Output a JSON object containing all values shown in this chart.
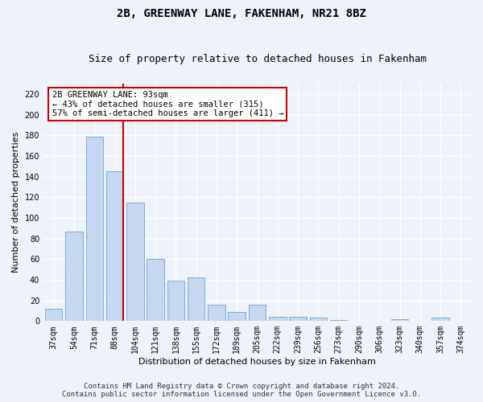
{
  "title": "2B, GREENWAY LANE, FAKENHAM, NR21 8BZ",
  "subtitle": "Size of property relative to detached houses in Fakenham",
  "xlabel": "Distribution of detached houses by size in Fakenham",
  "ylabel": "Number of detached properties",
  "footer_line1": "Contains HM Land Registry data © Crown copyright and database right 2024.",
  "footer_line2": "Contains public sector information licensed under the Open Government Licence v3.0.",
  "categories": [
    "37sqm",
    "54sqm",
    "71sqm",
    "88sqm",
    "104sqm",
    "121sqm",
    "138sqm",
    "155sqm",
    "172sqm",
    "189sqm",
    "205sqm",
    "222sqm",
    "239sqm",
    "256sqm",
    "273sqm",
    "290sqm",
    "306sqm",
    "323sqm",
    "340sqm",
    "357sqm",
    "374sqm"
  ],
  "values": [
    12,
    87,
    179,
    145,
    115,
    60,
    39,
    42,
    16,
    9,
    16,
    4,
    4,
    3,
    1,
    0,
    0,
    2,
    0,
    3,
    0
  ],
  "bar_color": "#c5d8f0",
  "bar_edge_color": "#7aadd4",
  "red_line_color": "#cc0000",
  "annotation_text": "2B GREENWAY LANE: 93sqm\n← 43% of detached houses are smaller (315)\n57% of semi-detached houses are larger (411) →",
  "annotation_box_color": "#ffffff",
  "annotation_box_edge": "#cc0000",
  "ylim": [
    0,
    230
  ],
  "yticks": [
    0,
    20,
    40,
    60,
    80,
    100,
    120,
    140,
    160,
    180,
    200,
    220
  ],
  "background_color": "#eef2fa",
  "grid_color": "#ffffff",
  "title_fontsize": 10,
  "subtitle_fontsize": 9,
  "axis_label_fontsize": 8,
  "tick_fontsize": 7,
  "annotation_fontsize": 7.5,
  "footer_fontsize": 6.5
}
